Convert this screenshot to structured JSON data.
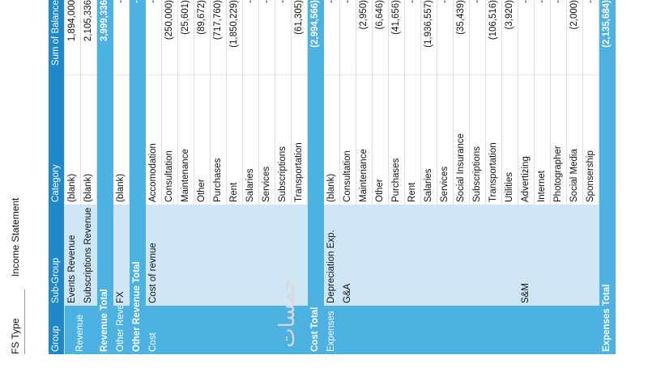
{
  "filter": {
    "label": "FS Type",
    "value": "Income Statement"
  },
  "headers": [
    "Group",
    "Sub-Group",
    "Category",
    "Sum of Balance"
  ],
  "rows": {
    "r1": {
      "group": "Revenue",
      "sub": "Events Revenue",
      "cat": "(blank)",
      "val": "1,894,000"
    },
    "r2": {
      "sub": "Subscriptions Revenue",
      "cat": "(blank)",
      "val": "2,105,336"
    },
    "t1": {
      "label": "Revenue Total",
      "val": "3,999,336"
    },
    "r3": {
      "group": "Other Revenue",
      "sub": "FX",
      "cat": "(blank)",
      "val": "-"
    },
    "t2": {
      "label": "Other Revenue Total",
      "val": "-"
    },
    "r4": {
      "group": "Cost",
      "sub": "Cost of revnue",
      "cat": "Accomodation",
      "val": "-"
    },
    "r5": {
      "cat": "Consultation",
      "val": "(250,000)"
    },
    "r6": {
      "cat": "Maintenance",
      "val": "(25,601)"
    },
    "r7": {
      "cat": "Other",
      "val": "(89,672)"
    },
    "r8": {
      "cat": "Purchases",
      "val": "(717,760)"
    },
    "r9": {
      "cat": "Rent",
      "val": "(1,850,229)"
    },
    "r10": {
      "cat": "Salaries",
      "val": "-"
    },
    "r11": {
      "cat": "Services",
      "val": "-"
    },
    "r12": {
      "cat": "Subscriptions",
      "val": "-"
    },
    "r13": {
      "cat": "Transportation",
      "val": "(61,305)"
    },
    "t3": {
      "label": "Cost Total",
      "val": "(2,994,566)"
    },
    "r14": {
      "group": "Expenses",
      "sub": "Depreciation Exp.",
      "cat": "(blank)",
      "val": "-"
    },
    "r15": {
      "sub": "G&A",
      "cat": "Consultation",
      "val": "-"
    },
    "r16": {
      "cat": "Maintenance",
      "val": "(2,950)"
    },
    "r17": {
      "cat": "Other",
      "val": "(6,646)"
    },
    "r18": {
      "cat": "Purchases",
      "val": "(41,656)"
    },
    "r19": {
      "cat": "Rent",
      "val": "-"
    },
    "r20": {
      "cat": "Salaries",
      "val": "(1,936,557)"
    },
    "r21": {
      "cat": "Services",
      "val": "-"
    },
    "r22": {
      "cat": "Social Insurance",
      "val": "(35,439)"
    },
    "r23": {
      "cat": "Subscriptions",
      "val": "-"
    },
    "r24": {
      "cat": "Transportation",
      "val": "(106,516)"
    },
    "r25": {
      "cat": "Utilities",
      "val": "(3,920)"
    },
    "r26": {
      "sub": "S&M",
      "cat": "Advertizing",
      "val": "-"
    },
    "r27": {
      "cat": "Internet",
      "val": "-"
    },
    "r28": {
      "cat": "Photographer",
      "val": "-"
    },
    "r29": {
      "cat": "Social Media",
      "val": "(2,000)"
    },
    "r30": {
      "cat": "Sponsership",
      "val": "-"
    },
    "t4": {
      "label": "Expenses Total",
      "val": "(2,135,684)"
    }
  },
  "watermark": "خمسات",
  "colors": {
    "header": "#1e88c8",
    "group": "#4db1e1",
    "subgroup": "#cfe7f5"
  }
}
